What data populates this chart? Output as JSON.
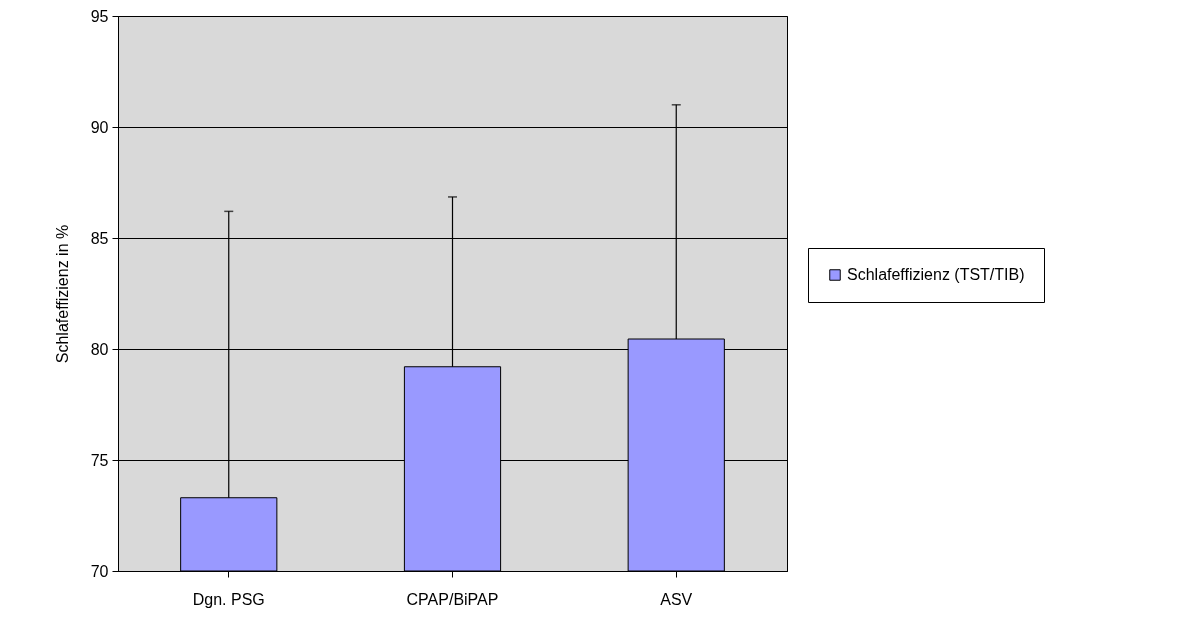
{
  "chart_data": {
    "type": "bar",
    "ylabel": "Schlafeffizienz in %",
    "categories": [
      "Dgn. PSG",
      "CPAP/BiPAP",
      "ASV"
    ],
    "series": [
      {
        "name": "Schlafeffizienz (TST/TIB)",
        "color": "#9999ff",
        "values": [
          73.3,
          79.2,
          80.45
        ],
        "errors": [
          [
            73.3,
            86.2
          ],
          [
            79.2,
            86.85
          ],
          [
            80.45,
            91.0
          ]
        ]
      }
    ],
    "ylim": [
      70,
      95
    ],
    "yticks": [
      70,
      75,
      80,
      85,
      90,
      95
    ],
    "grid": "y",
    "legend": "right"
  }
}
